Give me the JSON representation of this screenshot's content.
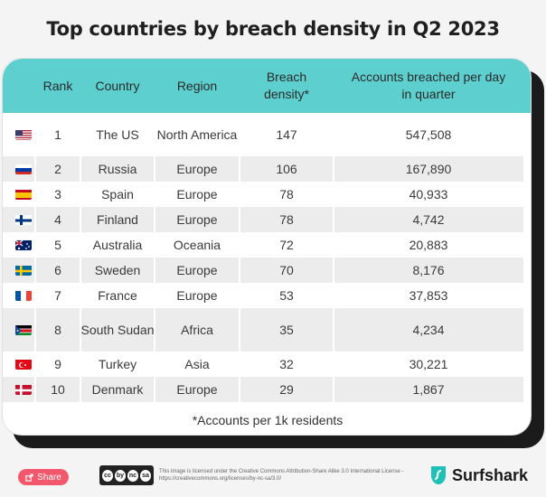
{
  "title": "Top countries by breach density in Q2 2023",
  "chart_data": {
    "type": "table",
    "columns": [
      "Rank",
      "Country",
      "Region",
      "Breach density*",
      "Accounts breached per day in quarter"
    ],
    "rows": [
      {
        "flag": "us-flag",
        "rank": "1",
        "country": "The US",
        "region": "North America",
        "density": "147",
        "accounts": "547,508"
      },
      {
        "flag": "russia-flag",
        "rank": "2",
        "country": "Russia",
        "region": "Europe",
        "density": "106",
        "accounts": "167,890"
      },
      {
        "flag": "spain-flag",
        "rank": "3",
        "country": "Spain",
        "region": "Europe",
        "density": "78",
        "accounts": "40,933"
      },
      {
        "flag": "finland-flag",
        "rank": "4",
        "country": "Finland",
        "region": "Europe",
        "density": "78",
        "accounts": "4,742"
      },
      {
        "flag": "australia-flag",
        "rank": "5",
        "country": "Australia",
        "region": "Oceania",
        "density": "72",
        "accounts": "20,883"
      },
      {
        "flag": "sweden-flag",
        "rank": "6",
        "country": "Sweden",
        "region": "Europe",
        "density": "70",
        "accounts": "8,176"
      },
      {
        "flag": "france-flag",
        "rank": "7",
        "country": "France",
        "region": "Europe",
        "density": "53",
        "accounts": "37,853"
      },
      {
        "flag": "south-sudan-flag",
        "rank": "8",
        "country": "South Sudan",
        "region": "Africa",
        "density": "35",
        "accounts": "4,234"
      },
      {
        "flag": "turkey-flag",
        "rank": "9",
        "country": "Turkey",
        "region": "Asia",
        "density": "32",
        "accounts": "30,221"
      },
      {
        "flag": "denmark-flag",
        "rank": "10",
        "country": "Denmark",
        "region": "Europe",
        "density": "29",
        "accounts": "1,867"
      }
    ],
    "footnote": "*Accounts per 1k residents"
  },
  "footer": {
    "share_label": "Share",
    "cc_marks": [
      "cc",
      "by",
      "nc",
      "sa"
    ],
    "license_text": "This image is licensed under the Creative Commons Attribution-Share Alike 3.0 International License - https://creativecommons.org/licenses/by-nc-sa/3.0/",
    "brand": "Surfshark"
  },
  "colors": {
    "header_bg": "#5ecfcf",
    "row_alt": "#ececec",
    "share_bg": "#f2576c",
    "brand_accent": "#1ec1b8"
  }
}
